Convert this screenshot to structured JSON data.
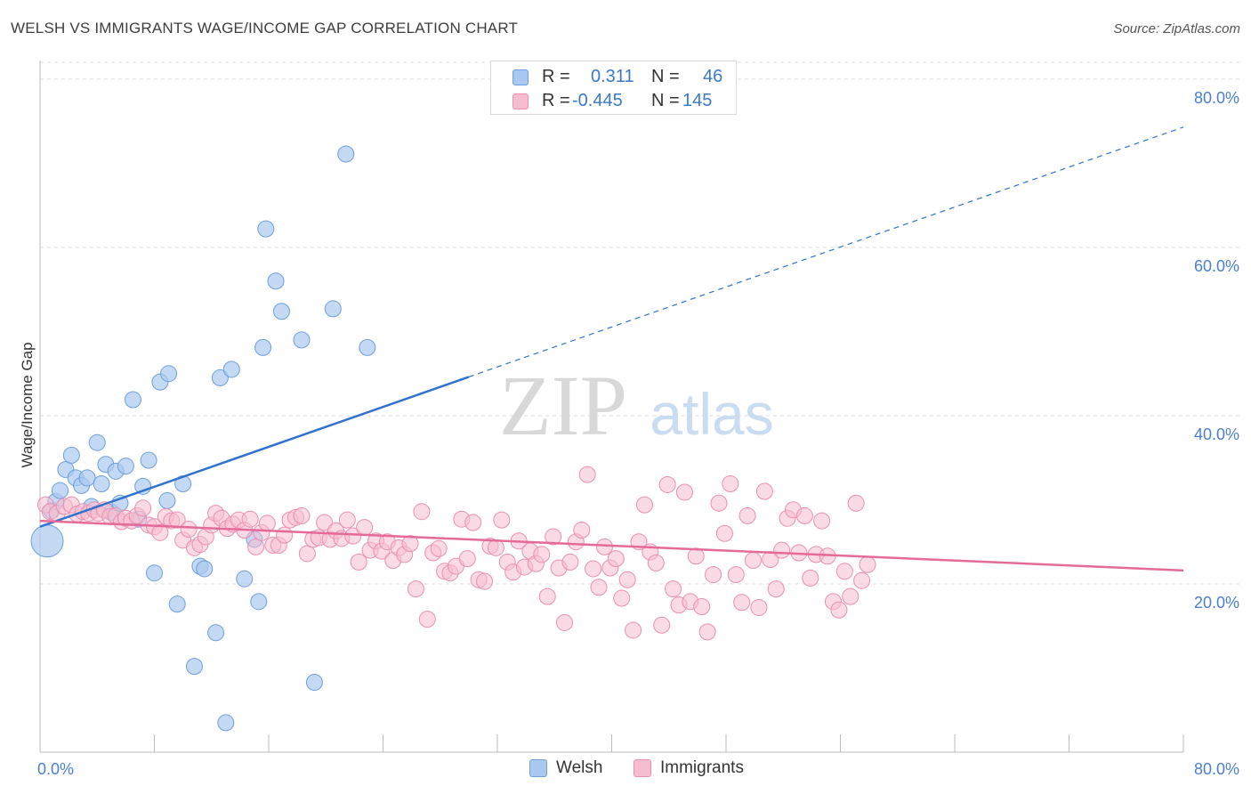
{
  "header": {
    "title": "WELSH VS IMMIGRANTS WAGE/INCOME GAP CORRELATION CHART",
    "source": "Source: ZipAtlas.com"
  },
  "watermark": {
    "zip": "ZIP",
    "atlas": "atlas"
  },
  "legend": {
    "welsh": {
      "r_label": "R =",
      "r_value": "0.311",
      "n_label": "N =",
      "n_value": "46"
    },
    "immigrants": {
      "r_label": "R =",
      "r_value": "-0.445",
      "n_label": "N =",
      "n_value": "145"
    }
  },
  "colors": {
    "welsh_fill": "#a9c9f0",
    "welsh_stroke": "#6e9fdc",
    "welsh_line": "#2f72cf",
    "imm_fill": "#f6bdd0",
    "imm_stroke": "#ea8fb0",
    "imm_line": "#e46b98",
    "tick_label": "#4a7fd0",
    "grid": "#dddddd"
  },
  "chart_data": {
    "type": "scatter",
    "title": "WELSH VS IMMIGRANTS WAGE/INCOME GAP CORRELATION CHART",
    "xlabel": "",
    "ylabel": "Wage/Income Gap",
    "xlim": [
      0,
      80
    ],
    "ylim": [
      0,
      82
    ],
    "x_tick_labels": [
      {
        "value": 0,
        "label": "0.0%"
      },
      {
        "value": 80,
        "label": "80.0%"
      }
    ],
    "y_tick_labels": [
      {
        "value": 20,
        "label": "20.0%"
      },
      {
        "value": 40,
        "label": "40.0%"
      },
      {
        "value": 60,
        "label": "60.0%"
      },
      {
        "value": 80,
        "label": "80.0%"
      }
    ],
    "grid": true,
    "legend_position": "top-center",
    "series": [
      {
        "name": "Welsh",
        "r": 0.311,
        "n": 46,
        "trendline": {
          "x0": 0,
          "y0": 26.8,
          "x1": 30,
          "y1": 44.6,
          "extended_x1": 80,
          "extended_y1": 74.3
        },
        "points": [
          [
            0.5,
            25.1
          ],
          [
            0.8,
            28.7
          ],
          [
            1.1,
            29.8
          ],
          [
            1.4,
            31.1
          ],
          [
            1.8,
            33.6
          ],
          [
            2.2,
            35.3
          ],
          [
            2.5,
            32.6
          ],
          [
            2.9,
            31.7
          ],
          [
            3.3,
            32.6
          ],
          [
            3.6,
            29.2
          ],
          [
            4.0,
            36.8
          ],
          [
            4.3,
            31.9
          ],
          [
            4.6,
            34.2
          ],
          [
            5.0,
            28.5
          ],
          [
            5.3,
            33.4
          ],
          [
            5.6,
            29.6
          ],
          [
            6.0,
            34.0
          ],
          [
            6.5,
            41.9
          ],
          [
            6.9,
            27.7
          ],
          [
            7.2,
            31.6
          ],
          [
            7.6,
            34.7
          ],
          [
            8.0,
            21.3
          ],
          [
            8.4,
            44.0
          ],
          [
            9.0,
            45.0
          ],
          [
            8.9,
            29.9
          ],
          [
            9.6,
            17.6
          ],
          [
            10.0,
            31.9
          ],
          [
            10.8,
            10.2
          ],
          [
            11.2,
            22.1
          ],
          [
            11.5,
            21.8
          ],
          [
            12.3,
            14.2
          ],
          [
            12.6,
            44.5
          ],
          [
            13.0,
            3.5
          ],
          [
            13.4,
            45.5
          ],
          [
            14.3,
            20.6
          ],
          [
            15.0,
            25.3
          ],
          [
            15.3,
            17.9
          ],
          [
            15.6,
            48.1
          ],
          [
            15.8,
            62.2
          ],
          [
            16.5,
            56.0
          ],
          [
            16.9,
            52.4
          ],
          [
            18.3,
            49.0
          ],
          [
            19.2,
            8.3
          ],
          [
            20.5,
            52.7
          ],
          [
            21.4,
            71.1
          ],
          [
            22.9,
            48.1
          ]
        ],
        "point_sizes_note": "point at x 0.5 drawn larger"
      },
      {
        "name": "Immigrants",
        "r": -0.445,
        "n": 145,
        "trendline": {
          "x0": 0,
          "y0": 27.5,
          "x1": 80,
          "y1": 21.6
        },
        "points": [
          [
            0.4,
            29.4
          ],
          [
            0.7,
            28.6
          ],
          [
            1.2,
            28.4
          ],
          [
            1.7,
            29.2
          ],
          [
            2.2,
            29.4
          ],
          [
            2.6,
            28.3
          ],
          [
            3.0,
            28.6
          ],
          [
            3.4,
            28.4
          ],
          [
            3.8,
            28.8
          ],
          [
            4.1,
            28.4
          ],
          [
            4.5,
            28.8
          ],
          [
            4.9,
            28.0
          ],
          [
            5.3,
            28.1
          ],
          [
            5.7,
            27.4
          ],
          [
            6.0,
            27.8
          ],
          [
            6.4,
            27.5
          ],
          [
            6.8,
            28.1
          ],
          [
            7.2,
            29.0
          ],
          [
            7.6,
            27.0
          ],
          [
            8.0,
            26.8
          ],
          [
            8.4,
            26.1
          ],
          [
            8.8,
            28.0
          ],
          [
            9.2,
            27.5
          ],
          [
            9.6,
            27.6
          ],
          [
            10.0,
            25.2
          ],
          [
            10.4,
            26.5
          ],
          [
            10.8,
            24.3
          ],
          [
            11.2,
            24.7
          ],
          [
            11.6,
            25.6
          ],
          [
            12.0,
            27.0
          ],
          [
            12.3,
            28.4
          ],
          [
            12.7,
            27.8
          ],
          [
            13.1,
            26.6
          ],
          [
            13.5,
            27.1
          ],
          [
            13.9,
            27.6
          ],
          [
            14.3,
            26.4
          ],
          [
            14.7,
            27.7
          ],
          [
            15.1,
            24.4
          ],
          [
            15.5,
            26.1
          ],
          [
            15.9,
            27.2
          ],
          [
            16.3,
            24.6
          ],
          [
            16.7,
            24.6
          ],
          [
            17.1,
            25.8
          ],
          [
            17.5,
            27.6
          ],
          [
            17.9,
            27.9
          ],
          [
            18.3,
            28.1
          ],
          [
            18.7,
            23.6
          ],
          [
            19.1,
            25.3
          ],
          [
            19.5,
            25.5
          ],
          [
            19.9,
            27.3
          ],
          [
            20.3,
            25.3
          ],
          [
            20.7,
            26.3
          ],
          [
            21.1,
            25.4
          ],
          [
            21.5,
            27.6
          ],
          [
            21.9,
            25.7
          ],
          [
            22.3,
            22.6
          ],
          [
            22.7,
            26.7
          ],
          [
            23.1,
            24.0
          ],
          [
            23.5,
            25.1
          ],
          [
            23.9,
            23.9
          ],
          [
            24.3,
            25.0
          ],
          [
            24.7,
            22.8
          ],
          [
            25.1,
            24.3
          ],
          [
            25.5,
            23.5
          ],
          [
            25.9,
            24.8
          ],
          [
            26.3,
            19.4
          ],
          [
            26.7,
            28.6
          ],
          [
            27.1,
            15.8
          ],
          [
            27.5,
            23.7
          ],
          [
            27.9,
            24.2
          ],
          [
            28.3,
            21.5
          ],
          [
            28.7,
            21.3
          ],
          [
            29.1,
            22.1
          ],
          [
            29.5,
            27.7
          ],
          [
            29.9,
            23.0
          ],
          [
            30.3,
            27.3
          ],
          [
            30.7,
            20.5
          ],
          [
            31.1,
            20.3
          ],
          [
            31.5,
            24.5
          ],
          [
            31.9,
            24.3
          ],
          [
            32.3,
            27.6
          ],
          [
            32.7,
            22.6
          ],
          [
            33.1,
            21.4
          ],
          [
            33.5,
            25.1
          ],
          [
            33.9,
            22.0
          ],
          [
            34.3,
            23.9
          ],
          [
            34.7,
            22.4
          ],
          [
            35.1,
            23.5
          ],
          [
            35.5,
            18.5
          ],
          [
            35.9,
            25.6
          ],
          [
            36.3,
            21.9
          ],
          [
            36.7,
            15.4
          ],
          [
            37.1,
            22.6
          ],
          [
            37.5,
            25.0
          ],
          [
            37.9,
            26.4
          ],
          [
            38.3,
            33.0
          ],
          [
            38.7,
            21.8
          ],
          [
            39.1,
            19.6
          ],
          [
            39.5,
            24.4
          ],
          [
            39.9,
            21.9
          ],
          [
            40.3,
            23.0
          ],
          [
            40.7,
            18.3
          ],
          [
            41.1,
            20.5
          ],
          [
            41.5,
            14.5
          ],
          [
            41.9,
            25.0
          ],
          [
            42.3,
            29.4
          ],
          [
            42.7,
            23.8
          ],
          [
            43.1,
            22.5
          ],
          [
            43.5,
            15.1
          ],
          [
            43.9,
            31.8
          ],
          [
            44.3,
            19.4
          ],
          [
            44.7,
            17.5
          ],
          [
            45.1,
            30.9
          ],
          [
            45.5,
            17.9
          ],
          [
            45.9,
            23.3
          ],
          [
            46.3,
            17.3
          ],
          [
            46.7,
            14.3
          ],
          [
            47.1,
            21.1
          ],
          [
            47.5,
            29.6
          ],
          [
            47.9,
            26.0
          ],
          [
            48.3,
            31.9
          ],
          [
            48.7,
            21.1
          ],
          [
            49.1,
            17.8
          ],
          [
            49.5,
            28.1
          ],
          [
            49.9,
            22.8
          ],
          [
            50.3,
            17.2
          ],
          [
            50.7,
            31.0
          ],
          [
            51.1,
            22.9
          ],
          [
            51.5,
            19.4
          ],
          [
            51.9,
            24.0
          ],
          [
            52.3,
            27.8
          ],
          [
            52.7,
            28.8
          ],
          [
            53.1,
            23.7
          ],
          [
            53.5,
            28.1
          ],
          [
            53.9,
            20.7
          ],
          [
            54.3,
            23.5
          ],
          [
            54.7,
            27.5
          ],
          [
            55.1,
            23.3
          ],
          [
            55.5,
            17.9
          ],
          [
            55.9,
            16.9
          ],
          [
            56.3,
            21.5
          ],
          [
            56.7,
            18.5
          ],
          [
            57.1,
            29.6
          ],
          [
            57.5,
            20.4
          ],
          [
            57.9,
            22.3
          ]
        ]
      }
    ]
  }
}
